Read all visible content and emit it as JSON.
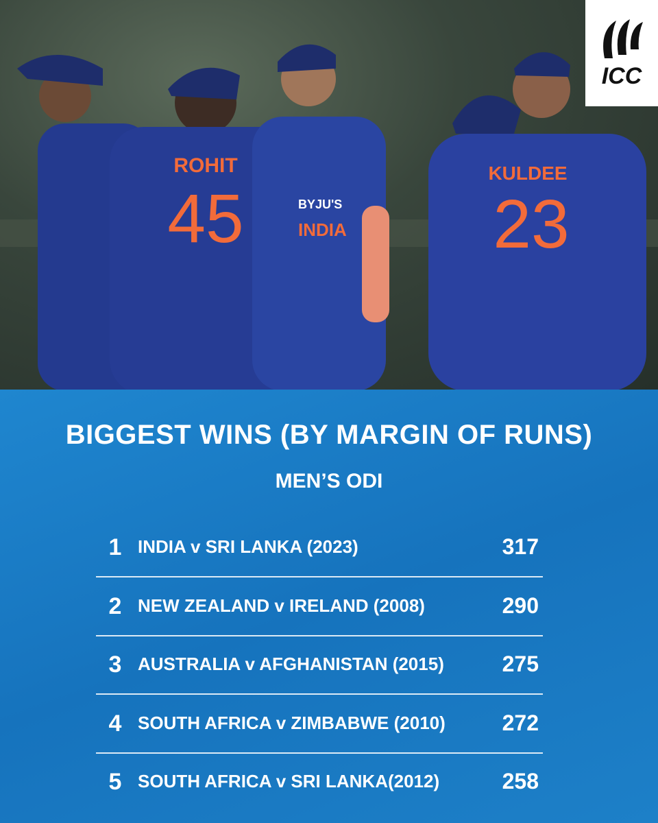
{
  "photo": {
    "jerseys": [
      {
        "name": "ROHIT",
        "number": "45"
      },
      {
        "name": "KULDEE",
        "number": "23"
      }
    ],
    "sponsor": [
      "BYJU'S",
      "INDIA"
    ]
  },
  "logo": {
    "text": "ICC"
  },
  "header": {
    "title": "BIGGEST WINS (BY MARGIN OF RUNS)",
    "subtitle": "MEN’S ODI"
  },
  "table": {
    "rows": [
      [
        1,
        "INDIA v SRI LANKA (2023)",
        317
      ],
      [
        2,
        "NEW ZEALAND v IRELAND (2008)",
        290
      ],
      [
        3,
        "AUSTRALIA v AFGHANISTAN (2015)",
        275
      ],
      [
        4,
        "SOUTH AFRICA v ZIMBABWE (2010)",
        272
      ],
      [
        5,
        "SOUTH AFRICA v SRI LANKA(2012)",
        258
      ]
    ]
  }
}
